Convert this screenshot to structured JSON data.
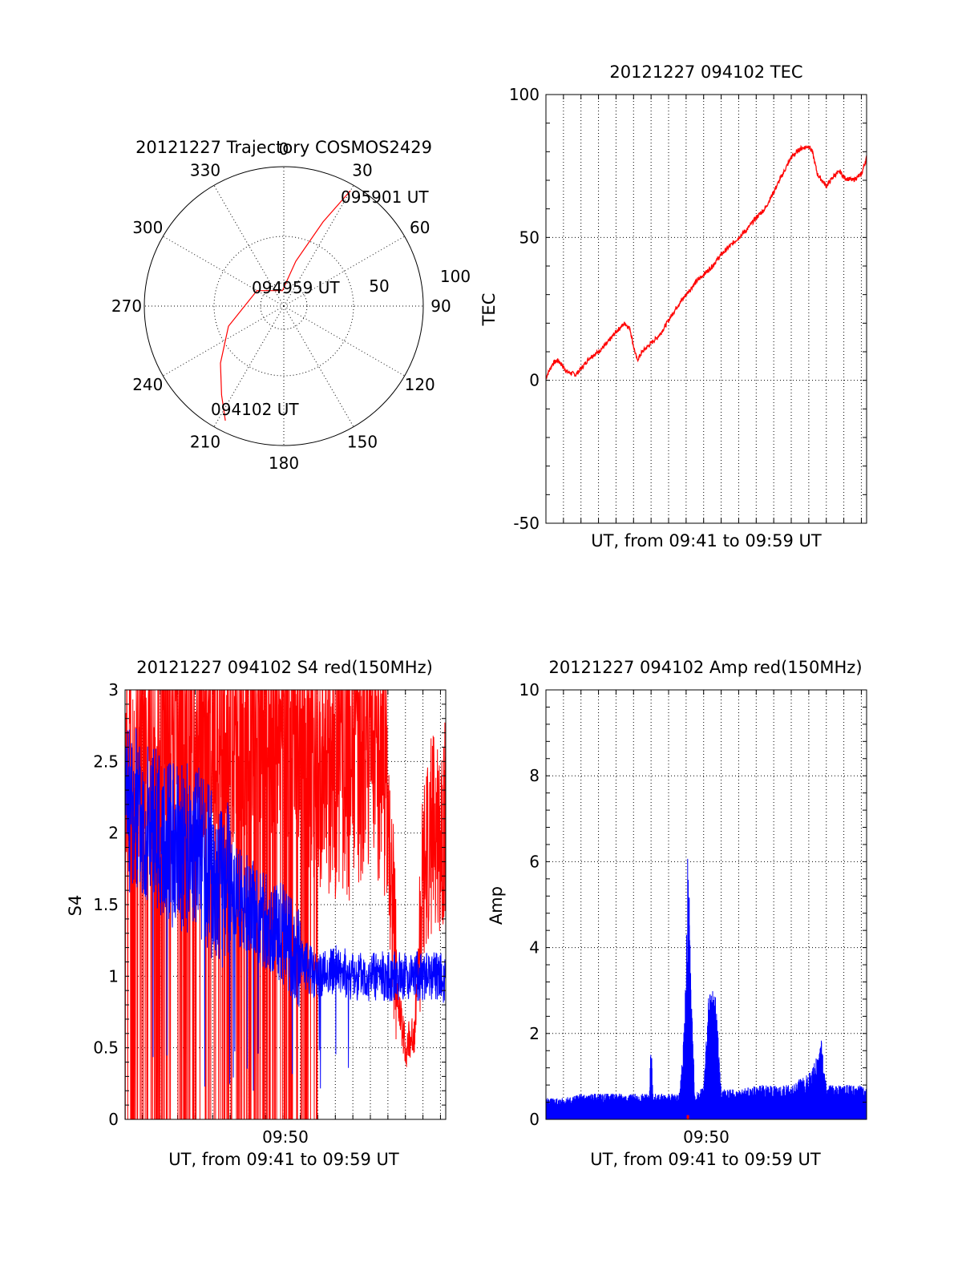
{
  "chart_data": [
    {
      "type": "polar",
      "title": "20121227 Trajectory COSMOS2429",
      "angle_labels": [
        "0",
        "30",
        "60",
        "90",
        "120",
        "150",
        "180",
        "210",
        "240",
        "270",
        "300",
        "330"
      ],
      "radial_labels": [
        "50",
        "100"
      ],
      "annotations": {
        "start": "094102 UT",
        "middle": "094959 UT",
        "end": "095901 UT"
      },
      "series": [
        {
          "color": "#ff0000",
          "points": [
            [
              207,
              83
            ],
            [
              215,
              70
            ],
            [
              228,
              55
            ],
            [
              250,
              38
            ],
            [
              300,
              20
            ],
            [
              355,
              10
            ],
            [
              15,
              30
            ],
            [
              25,
              60
            ],
            [
              30,
              86
            ]
          ]
        }
      ]
    },
    {
      "type": "line",
      "title": "20121227 094102 TEC",
      "xlabel": "UT, from 09:41 to 09:59 UT",
      "ylabel": "TEC",
      "xlim": [
        0,
        18.3
      ],
      "ylim": [
        -50,
        100
      ],
      "yticks": [
        "100",
        "50",
        "0",
        "-50"
      ],
      "ytick_values": [
        100,
        50,
        0,
        -50
      ],
      "grid": true,
      "series": [
        {
          "color": "#ff0000",
          "x": [
            0.0,
            0.4,
            0.7,
            1.2,
            1.7,
            2.0,
            2.5,
            3.0,
            3.5,
            4.0,
            4.5,
            4.8,
            5.0,
            5.2,
            5.3,
            5.5,
            6.0,
            6.5,
            7.0,
            7.5,
            8.0,
            8.5,
            9.0,
            9.5,
            10.0,
            10.5,
            11.0,
            11.5,
            12.0,
            12.5,
            13.0,
            13.5,
            14.0,
            14.5,
            15.0,
            15.2,
            15.5,
            16.0,
            16.5,
            16.8,
            17.0,
            17.5,
            18.0,
            18.3
          ],
          "y": [
            1,
            6,
            7,
            3,
            2,
            4,
            8,
            10,
            13,
            17,
            20,
            18,
            12,
            7,
            8,
            10,
            13,
            16,
            21,
            26,
            30,
            34,
            37,
            40,
            44,
            47,
            50,
            53,
            57,
            60,
            66,
            72,
            78,
            81,
            82,
            80,
            72,
            68,
            72,
            73,
            71,
            70,
            72,
            78
          ]
        }
      ]
    },
    {
      "type": "line",
      "title": "20121227 094102 S4 red(150MHz)",
      "xlabel": "UT, from 09:41 to 09:59 UT",
      "ylabel": "S4",
      "xtick_label": "09:50",
      "xlim": [
        0,
        18.3
      ],
      "ylim": [
        0,
        3
      ],
      "yticks": [
        "3",
        "2.5",
        "2",
        "1.5",
        "1",
        "0.5",
        "0"
      ],
      "ytick_values": [
        3,
        2.5,
        2,
        1.5,
        1,
        0.5,
        0
      ],
      "grid": true,
      "series": [
        {
          "color": "#ff0000",
          "x": [
            0,
            1,
            2,
            3,
            4,
            5,
            6,
            7,
            8,
            9,
            10,
            11,
            12,
            13,
            14,
            15,
            15.5,
            16,
            16.5,
            17,
            17.5,
            18,
            18.3
          ],
          "y": [
            2.2,
            2.3,
            2.5,
            2.6,
            2.5,
            2.6,
            2.6,
            2.7,
            2.7,
            2.7,
            2.5,
            2.3,
            2.2,
            2.2,
            2.5,
            2.2,
            0.9,
            0.5,
            0.6,
            1.6,
            2.0,
            2.0,
            2.1
          ]
        },
        {
          "color": "#0000ff",
          "x": [
            0,
            1,
            2,
            3,
            4,
            5,
            6,
            7,
            8,
            9,
            10,
            11,
            12,
            13,
            14,
            15,
            16,
            17,
            18,
            18.3
          ],
          "y": [
            2.2,
            2.1,
            2.0,
            1.9,
            1.9,
            1.7,
            1.6,
            1.5,
            1.4,
            1.3,
            1.1,
            1.0,
            1.05,
            1.0,
            1.0,
            1.0,
            1.0,
            1.0,
            1.0,
            0.95
          ]
        }
      ]
    },
    {
      "type": "line",
      "title": "20121227 094102 Amp red(150MHz)",
      "xlabel": "UT, from 09:41 to 09:59 UT",
      "ylabel": "Amp",
      "xtick_label": "09:50",
      "xlim": [
        0,
        18.3
      ],
      "ylim": [
        0,
        10
      ],
      "yticks": [
        "10",
        "8",
        "6",
        "4",
        "2",
        "0"
      ],
      "ytick_values": [
        10,
        8,
        6,
        4,
        2,
        0
      ],
      "grid": true,
      "series": [
        {
          "color": "#0000ff",
          "x": [
            0,
            1,
            2,
            3,
            4,
            5,
            5.9,
            6.0,
            6.1,
            7,
            7.6,
            7.8,
            8.0,
            8.1,
            8.3,
            8.5,
            9.0,
            9.3,
            9.5,
            9.7,
            10.0,
            11,
            12,
            13,
            14,
            15,
            15.5,
            15.7,
            16,
            17,
            18,
            18.3
          ],
          "y": [
            0.5,
            0.5,
            0.6,
            0.6,
            0.6,
            0.6,
            0.6,
            2.0,
            0.6,
            0.6,
            0.6,
            1.5,
            3.5,
            6.8,
            3.0,
            0.6,
            0.8,
            3.0,
            3.2,
            2.8,
            0.7,
            0.7,
            0.8,
            0.8,
            0.8,
            1.1,
            1.5,
            1.9,
            0.8,
            0.8,
            0.8,
            0.7
          ]
        },
        {
          "color": "#ff0000",
          "x": [
            8.1
          ],
          "y": [
            0.1
          ]
        }
      ]
    }
  ]
}
